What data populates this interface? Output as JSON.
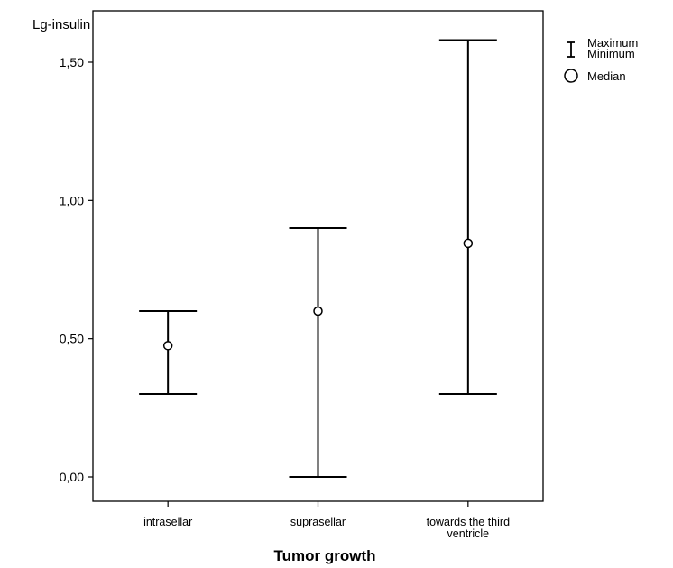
{
  "chart_data": {
    "type": "range",
    "xlabel": "Tumor growth",
    "ylabel": "Lg-insulin",
    "ylim": [
      -0.09,
      1.73
    ],
    "yticks": [
      0.0,
      0.5,
      1.0,
      1.5
    ],
    "ytick_labels": [
      "0,00",
      "0,50",
      "1,00",
      "1,50"
    ],
    "categories": [
      {
        "label_lines": [
          "intrasellar"
        ],
        "min": 0.3,
        "max": 0.6,
        "median": 0.475
      },
      {
        "label_lines": [
          "suprasellar"
        ],
        "min": 0.0,
        "max": 0.9,
        "median": 0.6
      },
      {
        "label_lines": [
          "towards the third",
          "ventricle"
        ],
        "min": 0.3,
        "max": 1.58,
        "median": 0.845
      }
    ],
    "legend": {
      "position": "top-right",
      "range_label_lines": [
        "Maximum",
        "Minimum"
      ],
      "median_label": "Median"
    },
    "grid": false
  }
}
